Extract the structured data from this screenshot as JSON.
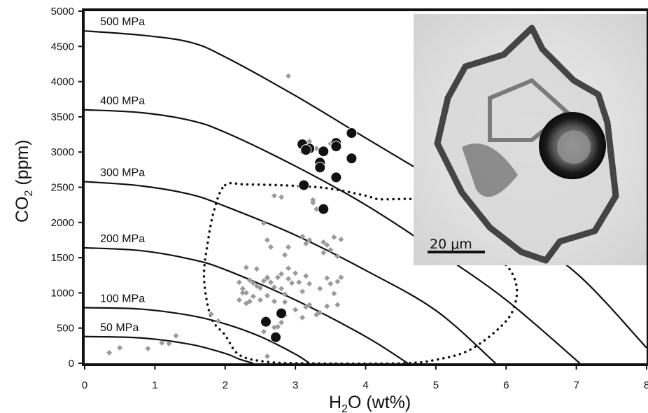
{
  "chart_data": {
    "type": "scatter",
    "xlabel_main": "H",
    "xlabel_sub": "2",
    "xlabel_rest": "O (wt%)",
    "ylabel_main": "CO",
    "ylabel_sub": "2",
    "ylabel_rest": " (ppm)",
    "xlim": [
      0,
      8
    ],
    "ylim": [
      0,
      5000
    ],
    "x_ticks": [
      0,
      1,
      2,
      3,
      4,
      5,
      6,
      7,
      8
    ],
    "y_ticks": [
      0,
      500,
      1000,
      1500,
      2000,
      2500,
      3000,
      3500,
      4000,
      4500,
      5000
    ],
    "isobars": [
      {
        "label": "500 MPa",
        "points": [
          [
            0,
            4720
          ],
          [
            0.8,
            4660
          ],
          [
            1.5,
            4560
          ],
          [
            2.0,
            4350
          ],
          [
            3.0,
            3800
          ],
          [
            4.0,
            3200
          ],
          [
            5.0,
            2600
          ],
          [
            6.0,
            1950
          ],
          [
            7.0,
            1280
          ],
          [
            8.0,
            220
          ]
        ]
      },
      {
        "label": "400 MPa",
        "points": [
          [
            0,
            3600
          ],
          [
            0.8,
            3560
          ],
          [
            1.5,
            3450
          ],
          [
            2.0,
            3280
          ],
          [
            3.0,
            2800
          ],
          [
            4.0,
            2250
          ],
          [
            5.0,
            1600
          ],
          [
            6.0,
            900
          ],
          [
            7.05,
            0
          ]
        ]
      },
      {
        "label": "300 MPa",
        "points": [
          [
            0,
            2580
          ],
          [
            0.8,
            2520
          ],
          [
            1.5,
            2400
          ],
          [
            2.0,
            2230
          ],
          [
            3.0,
            1820
          ],
          [
            4.0,
            1320
          ],
          [
            5.0,
            750
          ],
          [
            5.85,
            0
          ]
        ]
      },
      {
        "label": "200 MPa",
        "points": [
          [
            0,
            1640
          ],
          [
            0.8,
            1600
          ],
          [
            1.5,
            1480
          ],
          [
            2.0,
            1330
          ],
          [
            3.0,
            900
          ],
          [
            4.0,
            380
          ],
          [
            4.6,
            0
          ]
        ]
      },
      {
        "label": "100 MPa",
        "points": [
          [
            0,
            790
          ],
          [
            0.8,
            770
          ],
          [
            1.5,
            680
          ],
          [
            2.0,
            560
          ],
          [
            2.5,
            380
          ],
          [
            3.0,
            130
          ],
          [
            3.2,
            0
          ]
        ]
      },
      {
        "label": "50 MPa",
        "points": [
          [
            0,
            380
          ],
          [
            0.8,
            360
          ],
          [
            1.5,
            270
          ],
          [
            2.0,
            140
          ],
          [
            2.2,
            60
          ],
          [
            2.4,
            0
          ]
        ]
      }
    ],
    "inclusion_series": [
      [
        3.1,
        3110
      ],
      [
        3.2,
        3050
      ],
      [
        3.15,
        3030
      ],
      [
        3.4,
        3010
      ],
      [
        3.35,
        2850
      ],
      [
        3.35,
        2780
      ],
      [
        3.58,
        3130
      ],
      [
        3.58,
        3080
      ],
      [
        3.8,
        3270
      ],
      [
        3.8,
        2910
      ],
      [
        3.58,
        2640
      ],
      [
        3.12,
        2530
      ],
      [
        3.4,
        2190
      ],
      [
        2.8,
        710
      ],
      [
        2.58,
        590
      ],
      [
        2.72,
        370
      ]
    ],
    "matrix_series": [
      [
        0.35,
        150
      ],
      [
        0.5,
        220
      ],
      [
        0.9,
        210
      ],
      [
        1.1,
        290
      ],
      [
        1.2,
        280
      ],
      [
        1.3,
        390
      ],
      [
        2.9,
        4080
      ],
      [
        3.1,
        3000
      ],
      [
        3.2,
        3150
      ],
      [
        3.3,
        3050
      ],
      [
        3.5,
        3120
      ],
      [
        3.6,
        3100
      ],
      [
        2.55,
        1990
      ],
      [
        2.6,
        1750
      ],
      [
        2.65,
        1650
      ],
      [
        2.7,
        2380
      ],
      [
        2.8,
        2360
      ],
      [
        2.85,
        1540
      ],
      [
        2.9,
        1650
      ],
      [
        3.1,
        1800
      ],
      [
        3.15,
        1700
      ],
      [
        3.2,
        1750
      ],
      [
        3.25,
        2320
      ],
      [
        3.3,
        2190
      ],
      [
        3.4,
        1720
      ],
      [
        3.4,
        1570
      ],
      [
        3.45,
        1680
      ],
      [
        3.5,
        1610
      ],
      [
        3.55,
        1790
      ],
      [
        3.6,
        1520
      ],
      [
        3.65,
        1760
      ],
      [
        3.25,
        2280
      ],
      [
        2.2,
        1150
      ],
      [
        2.25,
        1060
      ],
      [
        2.3,
        1000
      ],
      [
        2.35,
        1180
      ],
      [
        2.4,
        1140
      ],
      [
        2.45,
        1100
      ],
      [
        2.5,
        1070
      ],
      [
        2.55,
        1170
      ],
      [
        2.6,
        1210
      ],
      [
        2.65,
        1150
      ],
      [
        2.7,
        1080
      ],
      [
        2.75,
        1220
      ],
      [
        2.8,
        1060
      ],
      [
        2.85,
        980
      ],
      [
        2.9,
        1200
      ],
      [
        2.95,
        1140
      ],
      [
        3.0,
        1280
      ],
      [
        3.05,
        1150
      ],
      [
        3.1,
        1020
      ],
      [
        3.15,
        1240
      ],
      [
        3.2,
        1130
      ],
      [
        3.35,
        1060
      ],
      [
        3.45,
        1210
      ],
      [
        3.5,
        1130
      ],
      [
        3.55,
        990
      ],
      [
        3.6,
        1160
      ],
      [
        3.65,
        1220
      ],
      [
        2.2,
        900
      ],
      [
        2.25,
        1000
      ],
      [
        2.3,
        850
      ],
      [
        2.35,
        880
      ],
      [
        2.4,
        950
      ],
      [
        2.5,
        900
      ],
      [
        2.6,
        960
      ],
      [
        2.7,
        880
      ],
      [
        2.85,
        870
      ],
      [
        3.0,
        760
      ],
      [
        3.1,
        650
      ],
      [
        3.15,
        800
      ],
      [
        3.2,
        830
      ],
      [
        3.3,
        690
      ],
      [
        3.35,
        720
      ],
      [
        3.45,
        810
      ],
      [
        3.6,
        830
      ],
      [
        2.3,
        1360
      ],
      [
        2.45,
        1340
      ],
      [
        2.6,
        1220
      ],
      [
        2.8,
        1270
      ],
      [
        2.9,
        1350
      ],
      [
        1.8,
        700
      ],
      [
        1.9,
        600
      ],
      [
        2.55,
        450
      ],
      [
        2.7,
        510
      ],
      [
        2.8,
        580
      ],
      [
        2.75,
        520
      ],
      [
        2.85,
        680
      ],
      [
        2.6,
        100
      ]
    ],
    "melt_field_outline": [
      [
        2.0,
        2530
      ],
      [
        2.3,
        2540
      ],
      [
        3.0,
        2520
      ],
      [
        3.5,
        2480
      ],
      [
        4.0,
        2380
      ],
      [
        4.2,
        2330
      ],
      [
        4.7,
        2330
      ],
      [
        5.0,
        2250
      ],
      [
        5.5,
        1900
      ],
      [
        5.9,
        1500
      ],
      [
        6.1,
        1250
      ],
      [
        6.15,
        950
      ],
      [
        6.0,
        600
      ],
      [
        5.5,
        200
      ],
      [
        5.0,
        50
      ],
      [
        4.5,
        0
      ],
      [
        3.2,
        0
      ],
      [
        2.6,
        20
      ],
      [
        2.2,
        120
      ],
      [
        2.0,
        400
      ],
      [
        1.8,
        650
      ],
      [
        1.7,
        1200
      ],
      [
        1.75,
        1700
      ],
      [
        1.85,
        2200
      ],
      [
        2.0,
        2530
      ]
    ],
    "inset_scale_label": "20 μm"
  }
}
